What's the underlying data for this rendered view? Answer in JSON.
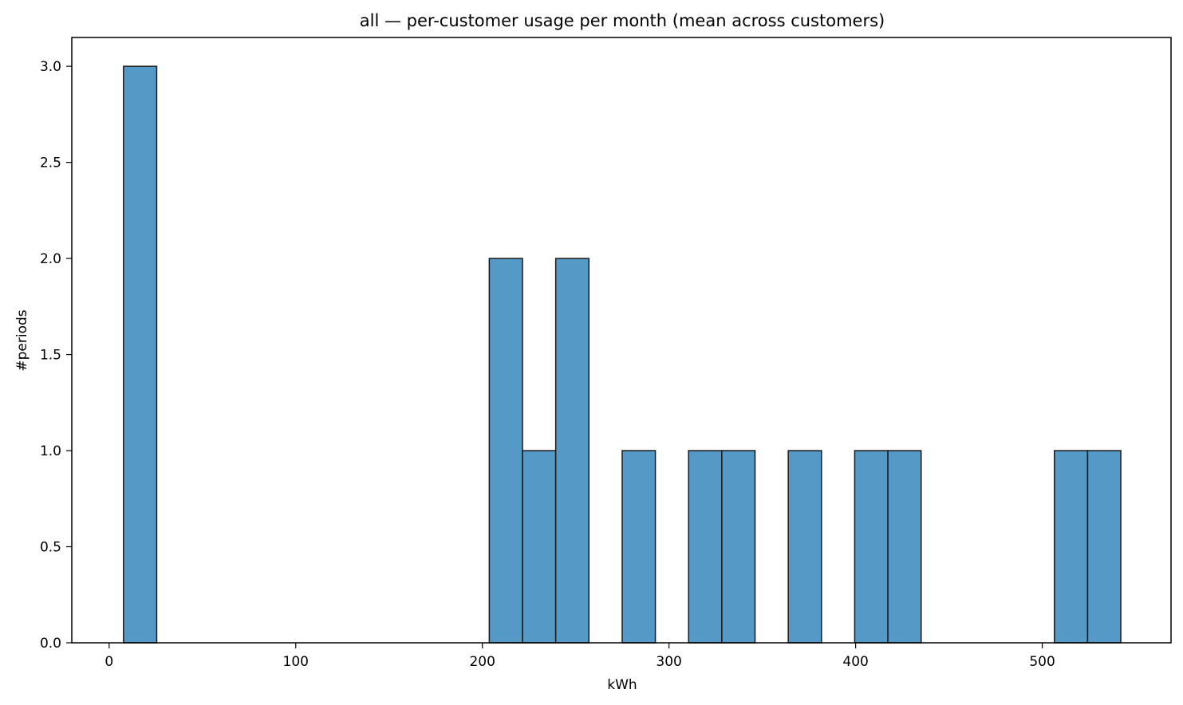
{
  "chart_data": {
    "type": "bar",
    "title": "all — per-customer usage per month (mean across customers)",
    "xlabel": "kWh",
    "ylabel": "#periods",
    "xlim": [
      -20,
      569
    ],
    "ylim": [
      0,
      3.15
    ],
    "xticks": [
      0,
      100,
      200,
      300,
      400,
      500
    ],
    "yticks": [
      "0.0",
      "0.5",
      "1.0",
      "1.5",
      "2.0",
      "2.5",
      "3.0"
    ],
    "bar_color": "#5599c7",
    "edge_color": "#1a1a1a",
    "grid": false,
    "bins": [
      {
        "x0": 7.7,
        "x1": 25.5,
        "count": 3
      },
      {
        "x0": 203.7,
        "x1": 221.5,
        "count": 2
      },
      {
        "x0": 221.5,
        "x1": 239.3,
        "count": 1
      },
      {
        "x0": 239.3,
        "x1": 257.1,
        "count": 2
      },
      {
        "x0": 274.9,
        "x1": 292.7,
        "count": 1
      },
      {
        "x0": 310.5,
        "x1": 328.3,
        "count": 1
      },
      {
        "x0": 328.3,
        "x1": 346.1,
        "count": 1
      },
      {
        "x0": 363.9,
        "x1": 381.7,
        "count": 1
      },
      {
        "x0": 399.5,
        "x1": 417.3,
        "count": 1
      },
      {
        "x0": 417.3,
        "x1": 435.1,
        "count": 1
      },
      {
        "x0": 506.5,
        "x1": 524.3,
        "count": 1
      },
      {
        "x0": 524.3,
        "x1": 542.1,
        "count": 1
      }
    ]
  }
}
